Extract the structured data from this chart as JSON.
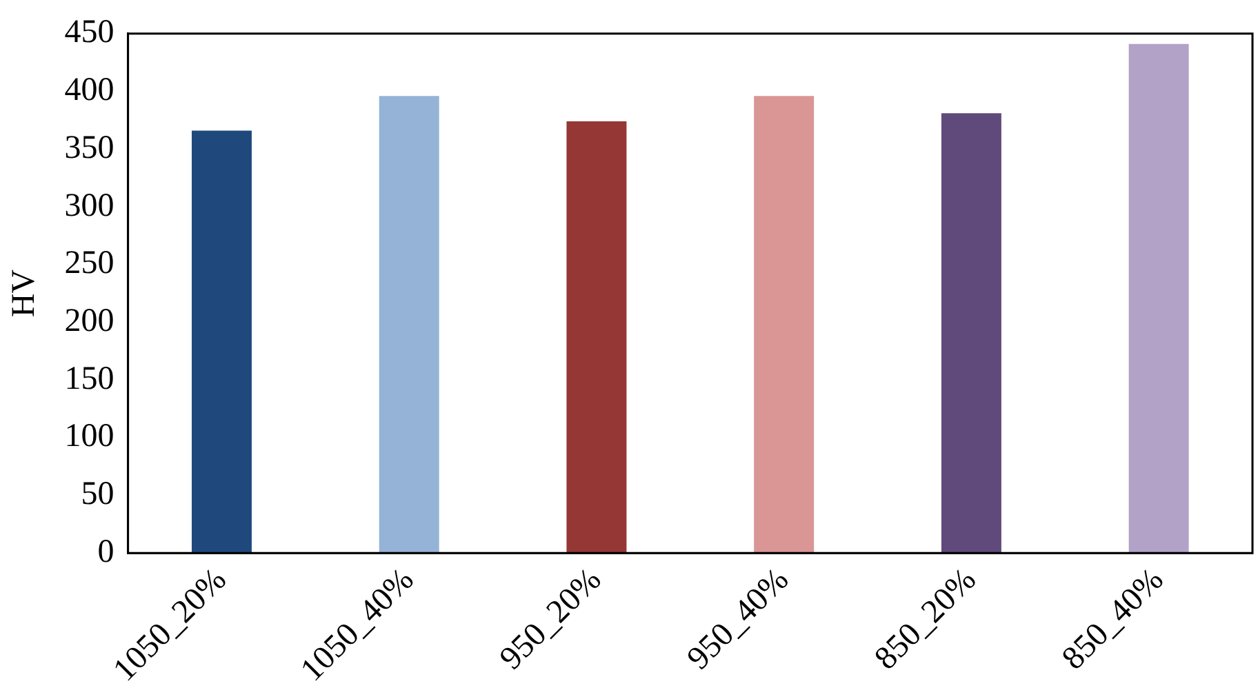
{
  "chart_data": {
    "type": "bar",
    "ylabel": "HV",
    "categories": [
      "1050_20%",
      "1050_40%",
      "950_20%",
      "950_40%",
      "850_20%",
      "850_40%"
    ],
    "values": [
      366,
      396,
      374,
      396,
      381,
      441
    ],
    "colors": [
      "#1f497d",
      "#95b3d7",
      "#953735",
      "#d99694",
      "#604a7b",
      "#b2a2c7"
    ],
    "ylim": [
      0,
      450
    ],
    "yticks": [
      0,
      50,
      100,
      150,
      200,
      250,
      300,
      350,
      400,
      450
    ],
    "grid": false,
    "legend": false
  }
}
